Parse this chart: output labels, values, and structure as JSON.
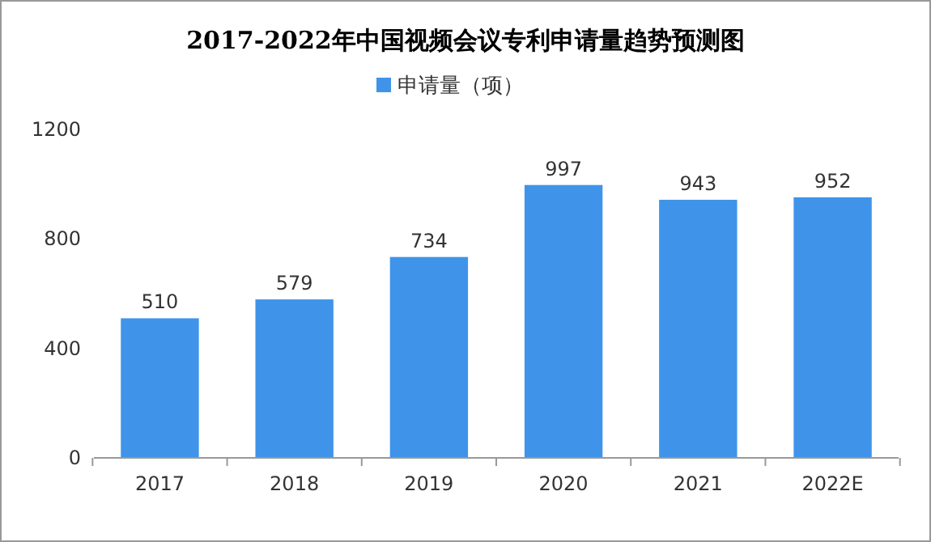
{
  "chart_data": {
    "type": "bar",
    "title": "2017-2022年中国视频会议专利申请量趋势预测图",
    "categories": [
      "2017",
      "2018",
      "2019",
      "2020",
      "2021",
      "2022E"
    ],
    "series": [
      {
        "name": "申请量（项）",
        "color": "#3f94ea",
        "values": [
          510,
          579,
          734,
          997,
          943,
          952
        ]
      }
    ],
    "ylim": [
      0,
      1200
    ],
    "yticks": [
      0,
      400,
      800,
      1200
    ],
    "grid": false,
    "legend": "top",
    "data_labels": true
  }
}
